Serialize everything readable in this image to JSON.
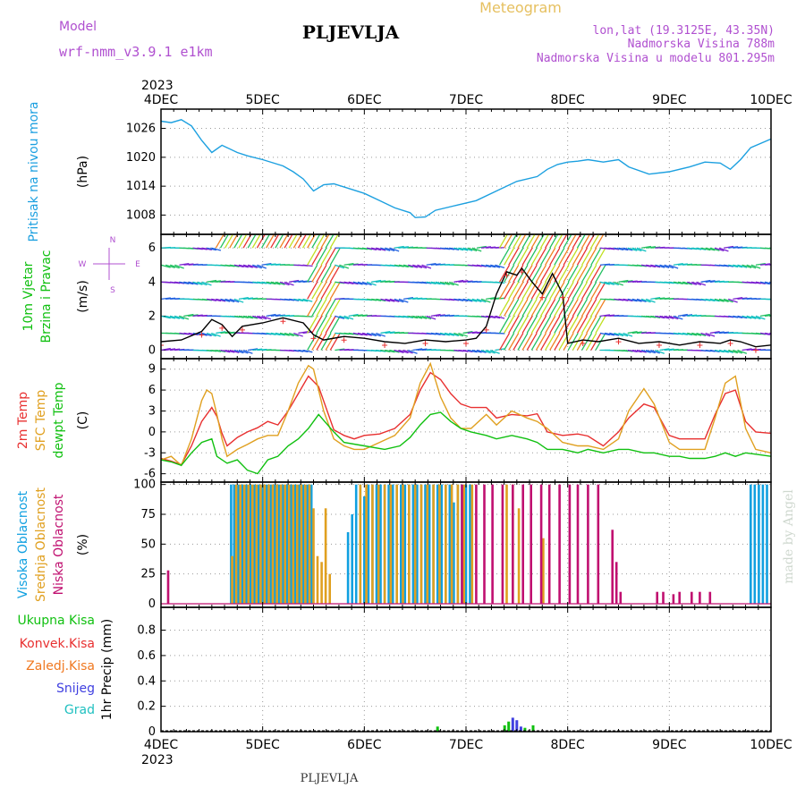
{
  "header": {
    "model_label": "Model",
    "model_name": "wrf-nmm_v3.9.1 e1km",
    "station": "PLJEVLJA",
    "title": "Meteogram",
    "coords": "lon,lat (19.3125E, 43.35N)",
    "altitude": "Nadmorska Visina 788m",
    "model_altitude": "Nadmorska Visina u modelu 801.295m",
    "footer_station": "PLJEVLJA",
    "credit": "made by Angel"
  },
  "colors": {
    "pressure": "#1ca0e0",
    "temp2m": "#e83030",
    "sfc": "#e0a020",
    "dew": "#10c010",
    "high_cloud": "#10a0e0",
    "mid_cloud": "#e0a020",
    "low_cloud": "#c01070",
    "model_text": "#b050d0",
    "wind_label": "#10c010",
    "conv": "#e83030",
    "frozen": "#f07820",
    "snow": "#4040e0",
    "grad": "#20c0c0"
  },
  "chart_data": [
    {
      "type": "line",
      "panel": "pressure",
      "title": "",
      "ylabel_lines": [
        "Pritisak na nivou mora"
      ],
      "unit": "(hPa)",
      "x_axis": {
        "year": "2023",
        "ticks": [
          "4DEC",
          "5DEC",
          "6DEC",
          "7DEC",
          "8DEC",
          "9DEC",
          "10DEC"
        ],
        "range_days": [
          0,
          6
        ]
      },
      "yticks": [
        1008,
        1014,
        1020,
        1026
      ],
      "ylim": [
        1004,
        1030
      ],
      "series": [
        {
          "color_key": "pressure",
          "x": [
            0,
            0.1,
            0.2,
            0.3,
            0.4,
            0.5,
            0.6,
            0.65,
            0.75,
            0.85,
            1.0,
            1.2,
            1.3,
            1.4,
            1.5,
            1.6,
            1.7,
            1.85,
            2.0,
            2.15,
            2.3,
            2.45,
            2.5,
            2.6,
            2.7,
            2.9,
            3.1,
            3.3,
            3.5,
            3.7,
            3.8,
            3.9,
            4.0,
            4.1,
            4.2,
            4.35,
            4.5,
            4.6,
            4.8,
            5.0,
            5.2,
            5.35,
            5.5,
            5.6,
            5.7,
            5.8,
            6.0
          ],
          "y": [
            1027.5,
            1027.2,
            1027.8,
            1026.5,
            1023.5,
            1021,
            1022.5,
            1022,
            1021,
            1020.3,
            1019.5,
            1018.2,
            1017,
            1015.5,
            1013,
            1014.3,
            1014.5,
            1013.5,
            1012.5,
            1011,
            1009.5,
            1008.5,
            1007.5,
            1007.6,
            1009,
            1010,
            1011,
            1013,
            1015,
            1016,
            1017.5,
            1018.5,
            1019,
            1019.2,
            1019.5,
            1019,
            1019.5,
            1018,
            1016.5,
            1017,
            1018,
            1019,
            1018.8,
            1017.5,
            1019.5,
            1022,
            1023.8
          ]
        }
      ]
    },
    {
      "type": "line",
      "panel": "wind",
      "title": "",
      "ylabel_lines": [
        "10m Vjetar",
        "Brzina i Pravac"
      ],
      "unit": "(m/s)",
      "compass": {
        "north": "N",
        "south": "S",
        "west": "W",
        "east": "E"
      },
      "yticks": [
        0,
        2,
        4,
        6
      ],
      "ylim": [
        -0.5,
        6.8
      ],
      "series": [
        {
          "name": "",
          "color": "#000000",
          "x": [
            0,
            0.2,
            0.4,
            0.5,
            0.6,
            0.7,
            0.8,
            1.0,
            1.2,
            1.4,
            1.5,
            1.6,
            1.8,
            2.0,
            2.2,
            2.4,
            2.6,
            2.8,
            3.0,
            3.1,
            3.2,
            3.3,
            3.4,
            3.5,
            3.55,
            3.65,
            3.75,
            3.85,
            3.95,
            4.0,
            4.15,
            4.3,
            4.5,
            4.7,
            4.9,
            5.1,
            5.3,
            5.5,
            5.6,
            5.7,
            5.85,
            6.0
          ],
          "y": [
            0.5,
            0.6,
            1.1,
            1.8,
            1.5,
            0.8,
            1.4,
            1.6,
            1.9,
            1.6,
            0.9,
            0.6,
            0.8,
            0.7,
            0.5,
            0.4,
            0.6,
            0.5,
            0.6,
            0.7,
            1.4,
            3.3,
            4.6,
            4.4,
            4.8,
            4.0,
            3.3,
            4.5,
            3.3,
            0.4,
            0.6,
            0.5,
            0.7,
            0.4,
            0.5,
            0.3,
            0.5,
            0.4,
            0.6,
            0.5,
            0.2,
            0.3
          ]
        }
      ]
    },
    {
      "type": "line",
      "panel": "temperature",
      "title": "",
      "ylabel_lines": [
        "2m Temp",
        "SFC Temp",
        "dewpt Temp"
      ],
      "unit": "(C)",
      "yticks": [
        -6,
        -3,
        0,
        3,
        6,
        9
      ],
      "ylim": [
        -7.2,
        10.5
      ],
      "series": [
        {
          "name": "2m Temp",
          "color_key": "temp2m",
          "x": [
            0,
            0.1,
            0.2,
            0.3,
            0.4,
            0.5,
            0.55,
            0.6,
            0.65,
            0.75,
            0.85,
            0.95,
            1.05,
            1.15,
            1.25,
            1.35,
            1.45,
            1.55,
            1.7,
            1.8,
            1.9,
            2.0,
            2.15,
            2.3,
            2.45,
            2.55,
            2.65,
            2.75,
            2.85,
            2.95,
            3.05,
            3.2,
            3.3,
            3.45,
            3.6,
            3.7,
            3.8,
            3.95,
            4.1,
            4.2,
            4.35,
            4.5,
            4.6,
            4.75,
            4.85,
            5.0,
            5.1,
            5.2,
            5.35,
            5.45,
            5.55,
            5.65,
            5.75,
            5.85,
            6.0
          ],
          "y": [
            -3.8,
            -4.2,
            -4.7,
            -2.0,
            1.5,
            3.5,
            2.2,
            -0.2,
            -2.0,
            -0.8,
            0.0,
            0.6,
            1.5,
            1.0,
            3.0,
            5.5,
            8.0,
            6.5,
            0.3,
            -0.5,
            -1.0,
            -0.5,
            -0.3,
            0.5,
            2.5,
            6.0,
            8.5,
            7.5,
            5.5,
            4.0,
            3.5,
            3.5,
            2.0,
            2.5,
            2.3,
            2.6,
            0.0,
            -0.5,
            -0.3,
            -0.6,
            -2.0,
            0.0,
            2.0,
            4.0,
            3.5,
            -0.5,
            -1.0,
            -1.0,
            -1.0,
            2.5,
            5.5,
            6.0,
            1.5,
            0.0,
            -0.2
          ]
        },
        {
          "name": "SFC Temp",
          "color_key": "sfc",
          "x": [
            0,
            0.1,
            0.2,
            0.3,
            0.4,
            0.45,
            0.5,
            0.55,
            0.6,
            0.65,
            0.75,
            0.85,
            0.95,
            1.05,
            1.15,
            1.25,
            1.35,
            1.45,
            1.5,
            1.6,
            1.7,
            1.8,
            1.9,
            2.0,
            2.15,
            2.3,
            2.45,
            2.55,
            2.65,
            2.75,
            2.85,
            2.95,
            3.05,
            3.2,
            3.3,
            3.45,
            3.6,
            3.7,
            3.8,
            3.95,
            4.1,
            4.2,
            4.35,
            4.5,
            4.6,
            4.75,
            4.85,
            5.0,
            5.1,
            5.2,
            5.35,
            5.45,
            5.55,
            5.65,
            5.75,
            5.85,
            6.0
          ],
          "y": [
            -4.0,
            -3.5,
            -4.8,
            -1.0,
            4.5,
            6.0,
            5.5,
            2.5,
            -1.0,
            -3.5,
            -2.5,
            -1.8,
            -1.0,
            -0.5,
            -0.5,
            3.0,
            7.0,
            9.5,
            9.0,
            3.0,
            -1.0,
            -2.0,
            -2.5,
            -2.5,
            -1.5,
            -0.5,
            2.0,
            7.0,
            9.8,
            5.0,
            2.0,
            0.5,
            0.5,
            2.5,
            1.0,
            3.0,
            2.0,
            1.5,
            0.5,
            -1.5,
            -2.0,
            -2.0,
            -2.5,
            -1.0,
            3.0,
            6.2,
            4.0,
            -1.5,
            -2.5,
            -2.5,
            -2.5,
            2.0,
            7.0,
            8.0,
            0.5,
            -2.5,
            -3.0
          ]
        },
        {
          "name": "dewpt Temp",
          "color_key": "dew",
          "x": [
            0,
            0.1,
            0.2,
            0.3,
            0.4,
            0.5,
            0.55,
            0.65,
            0.75,
            0.85,
            0.95,
            1.05,
            1.15,
            1.25,
            1.35,
            1.45,
            1.55,
            1.7,
            1.8,
            2.0,
            2.2,
            2.35,
            2.45,
            2.55,
            2.65,
            2.75,
            2.85,
            2.95,
            3.05,
            3.2,
            3.3,
            3.45,
            3.6,
            3.7,
            3.8,
            3.95,
            4.1,
            4.2,
            4.35,
            4.5,
            4.6,
            4.75,
            4.85,
            5.0,
            5.1,
            5.2,
            5.35,
            5.45,
            5.55,
            5.65,
            5.75,
            5.85,
            6.0
          ],
          "y": [
            -4.0,
            -4.3,
            -4.8,
            -3.0,
            -1.5,
            -1.0,
            -3.5,
            -4.5,
            -4.0,
            -5.5,
            -6.0,
            -4.0,
            -3.5,
            -2.0,
            -1.0,
            0.5,
            2.5,
            0.0,
            -1.5,
            -2.0,
            -2.5,
            -2.0,
            -0.8,
            1.0,
            2.5,
            2.8,
            1.5,
            0.5,
            0.0,
            -0.5,
            -1.0,
            -0.5,
            -1.0,
            -1.5,
            -2.5,
            -2.5,
            -3.0,
            -2.5,
            -3.0,
            -2.5,
            -2.5,
            -3.0,
            -3.0,
            -3.5,
            -3.5,
            -3.8,
            -3.8,
            -3.5,
            -3.0,
            -3.5,
            -3.0,
            -3.2,
            -3.5
          ]
        }
      ]
    },
    {
      "type": "bar",
      "panel": "clouds",
      "title": "",
      "ylabel_lines": [
        "Visoka Oblacnost",
        "Srednja Oblacnost",
        "Niska Oblacnost"
      ],
      "unit": "(%)",
      "yticks": [
        0,
        25,
        50,
        75,
        100
      ],
      "ylim": [
        -3,
        102
      ],
      "series": [
        {
          "name": "Visoka Oblacnost",
          "color_key": "high_cloud",
          "x": [
            0.69,
            0.72,
            0.76,
            0.8,
            0.84,
            0.88,
            0.92,
            0.96,
            1.0,
            1.04,
            1.08,
            1.12,
            1.16,
            1.2,
            1.24,
            1.28,
            1.32,
            1.36,
            1.4,
            1.44,
            1.48,
            1.84,
            1.88,
            1.92,
            1.96,
            2.0,
            2.04,
            2.08,
            2.12,
            2.16,
            2.2,
            2.24,
            2.28,
            2.32,
            2.36,
            2.4,
            2.44,
            2.48,
            2.52,
            2.56,
            2.6,
            2.64,
            2.68,
            2.72,
            2.76,
            2.8,
            2.84,
            2.88,
            2.92,
            2.96,
            3.0,
            3.04,
            5.8,
            5.84,
            5.88,
            5.92,
            5.96
          ],
          "y": [
            100,
            100,
            100,
            100,
            100,
            100,
            100,
            100,
            100,
            100,
            100,
            100,
            100,
            100,
            100,
            100,
            100,
            100,
            100,
            100,
            100,
            60,
            75,
            100,
            100,
            90,
            100,
            100,
            100,
            100,
            100,
            100,
            100,
            100,
            100,
            100,
            100,
            100,
            100,
            100,
            100,
            100,
            100,
            100,
            100,
            100,
            100,
            85,
            100,
            100,
            100,
            100,
            100,
            100,
            100,
            100,
            100
          ]
        },
        {
          "name": "Srednja Oblacnost",
          "color_key": "mid_cloud",
          "x": [
            0.7,
            0.74,
            0.78,
            0.82,
            0.86,
            0.9,
            0.94,
            0.98,
            1.02,
            1.06,
            1.1,
            1.14,
            1.18,
            1.22,
            1.26,
            1.3,
            1.34,
            1.38,
            1.42,
            1.46,
            1.5,
            1.54,
            1.58,
            1.62,
            1.66,
            1.96,
            2.02,
            2.08,
            2.14,
            2.2,
            2.26,
            2.32,
            2.38,
            2.44,
            2.5,
            2.56,
            2.62,
            2.68,
            2.74,
            2.8,
            2.86,
            2.92,
            2.98,
            3.06,
            3.4,
            3.46,
            3.52,
            3.76
          ],
          "y": [
            40,
            100,
            100,
            100,
            100,
            100,
            100,
            100,
            100,
            100,
            100,
            100,
            100,
            100,
            100,
            100,
            100,
            100,
            100,
            100,
            80,
            40,
            35,
            80,
            25,
            100,
            100,
            100,
            100,
            100,
            100,
            100,
            100,
            100,
            100,
            100,
            100,
            100,
            100,
            100,
            100,
            100,
            100,
            100,
            100,
            100,
            80,
            55
          ]
        },
        {
          "name": "Niska Oblacnost",
          "color_key": "low_cloud",
          "x": [
            0.07,
            2.96,
            3.1,
            3.18,
            3.26,
            3.36,
            3.46,
            3.56,
            3.64,
            3.74,
            3.82,
            3.92,
            4.02,
            4.1,
            4.2,
            4.3,
            4.44,
            4.48,
            4.52,
            4.88,
            4.94,
            5.04,
            5.1,
            5.22,
            5.3,
            5.4
          ],
          "y": [
            28,
            100,
            100,
            100,
            100,
            100,
            100,
            100,
            100,
            100,
            100,
            100,
            100,
            100,
            100,
            100,
            62,
            35,
            10,
            10,
            10,
            8,
            10,
            10,
            10,
            10
          ]
        }
      ]
    },
    {
      "type": "bar",
      "panel": "precip",
      "title": "",
      "ylabel_lines": [
        "1hr Precip (mm)"
      ],
      "legend": [
        "Ukupna Kisa",
        "Konvek.Kisa",
        "Zaledj.Kisa",
        "Snijeg",
        "Grad"
      ],
      "yticks": [
        0,
        0.2,
        0.4,
        0.6,
        0.8
      ],
      "ylim": [
        0,
        0.98
      ],
      "x_axis": {
        "year": "2023",
        "ticks": [
          "4DEC",
          "5DEC",
          "6DEC",
          "7DEC",
          "8DEC",
          "9DEC",
          "10DEC"
        ]
      },
      "series": [
        {
          "name": "Ukupna Kisa",
          "color_key": "dew",
          "x": [
            2.72,
            3.38,
            3.42,
            3.58,
            3.66
          ],
          "y": [
            0.04,
            0.05,
            0.08,
            0.03,
            0.05
          ]
        },
        {
          "name": "Snijeg",
          "color_key": "snow",
          "x": [
            3.46,
            3.5,
            3.54
          ],
          "y": [
            0.11,
            0.09,
            0.04
          ]
        }
      ]
    }
  ]
}
